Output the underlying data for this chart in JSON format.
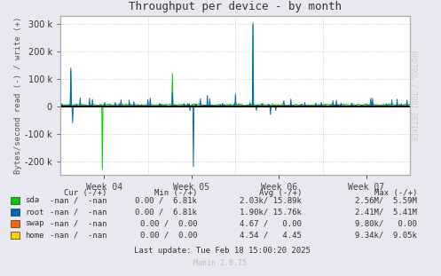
{
  "title": "Throughput per device - by month",
  "ylabel": "Bytes/second read (-) / write (+)",
  "ylabel_right": "RRDTOOL / TOBI OETIKER",
  "xlabels": [
    "Week 04",
    "Week 05",
    "Week 06",
    "Week 07"
  ],
  "ylim": [
    -250000,
    330000
  ],
  "yticks": [
    -200000,
    -100000,
    0,
    100000,
    200000,
    300000
  ],
  "bg_color": "#e8e8f0",
  "plot_bg_color": "#ffffff",
  "grid_color_h": "#ffaaaa",
  "grid_color_v": "#aacccc",
  "line_color_sda": "#00cc00",
  "line_color_root": "#0066bb",
  "line_color_swap": "#ff6600",
  "line_color_home": "#ffcc00",
  "zero_line_color": "#000000",
  "border_color": "#aaaaaa",
  "legend_items": [
    {
      "label": "sda",
      "color": "#00cc00"
    },
    {
      "label": "root",
      "color": "#0066bb"
    },
    {
      "label": "swap",
      "color": "#ff6600"
    },
    {
      "label": "home",
      "color": "#ffcc00"
    }
  ],
  "table_rows": [
    [
      "sda",
      "-nan /  -nan",
      "0.00 /  6.81k",
      "2.03k/ 15.89k",
      "2.56M/  5.59M"
    ],
    [
      "root",
      "-nan /  -nan",
      "0.00 /  6.81k",
      "1.90k/ 15.76k",
      "2.41M/  5.41M"
    ],
    [
      "swap",
      "-nan /  -nan",
      "0.00 /  0.00",
      "4.67 /   0.00",
      "9.80k/   0.00"
    ],
    [
      "home",
      "-nan /  -nan",
      "0.00 /  0.00",
      "4.54 /   4.45",
      "9.34k/  9.05k"
    ]
  ],
  "last_update": "Last update: Tue Feb 18 15:00:20 2025",
  "munin_version": "Munin 2.0.75",
  "n_points": 600
}
